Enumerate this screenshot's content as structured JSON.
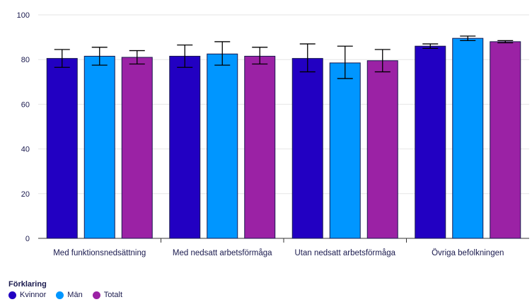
{
  "chart_data": {
    "type": "bar",
    "categories": [
      "Med funktionsnedsättning",
      "Med nedsatt arbetsförmåga",
      "Utan nedsatt arbetsförmåga",
      "Övriga befolkningen"
    ],
    "series": [
      {
        "name": "Kvinnor",
        "color": "#2200c2",
        "values": [
          80.5,
          81.5,
          80.5,
          86
        ],
        "err_low": [
          76.5,
          76.5,
          74.5,
          85
        ],
        "err_high": [
          84.5,
          86.5,
          87,
          87
        ]
      },
      {
        "name": "Män",
        "color": "#0096ff",
        "values": [
          81.5,
          82.5,
          78.5,
          89.5
        ],
        "err_low": [
          77.5,
          77.5,
          71.5,
          88.5
        ],
        "err_high": [
          85.5,
          88,
          86,
          90.5
        ]
      },
      {
        "name": "Totalt",
        "color": "#9b22a5",
        "values": [
          81,
          81.5,
          79.5,
          88
        ],
        "err_low": [
          78,
          78,
          74.5,
          87.5
        ],
        "err_high": [
          84,
          85.5,
          84.5,
          88.5
        ]
      }
    ],
    "ylim": [
      0,
      100
    ],
    "yticks": [
      0,
      20,
      40,
      60,
      80,
      100
    ],
    "grid": true,
    "legend_position": "bottom-left",
    "legend_title": "Förklaring"
  }
}
